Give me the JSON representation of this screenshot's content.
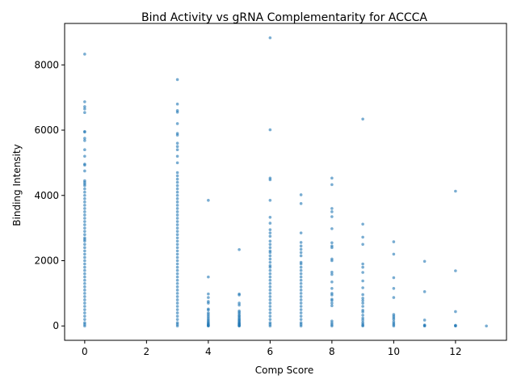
{
  "chart_data": {
    "type": "scatter",
    "title": "Bind Activity vs gRNA Complementarity for ACCCA",
    "xlabel": "Comp Score",
    "ylabel": "Binding Intensity",
    "xlim": [
      -0.65,
      13.65
    ],
    "ylim": [
      -440,
      9270
    ],
    "xticks": [
      0,
      2,
      4,
      6,
      8,
      10,
      12
    ],
    "yticks": [
      0,
      2000,
      4000,
      6000,
      8000
    ],
    "grid": false,
    "legend": "none",
    "marker_color": "#1f77b4",
    "marker_alpha": 0.6,
    "series": [
      {
        "x": 0,
        "y": [
          8330,
          6870,
          6720,
          6650,
          6540,
          5960,
          5940,
          5750,
          5680,
          5400,
          5200,
          4960,
          4930,
          4750,
          4450,
          4400,
          4350,
          4300,
          4200,
          4100,
          4000,
          3900,
          3800,
          3700,
          3600,
          3500,
          3400,
          3300,
          3200,
          3100,
          3000,
          2900,
          2800,
          2700,
          2650,
          2600,
          2500,
          2400,
          2300,
          2200,
          2100,
          2000,
          1900,
          1800,
          1700,
          1600,
          1500,
          1400,
          1300,
          1200,
          1100,
          1000,
          900,
          800,
          700,
          600,
          500,
          400,
          300,
          200,
          100,
          50,
          0
        ]
      },
      {
        "x": 3,
        "y": [
          7550,
          6800,
          6600,
          6550,
          6200,
          5900,
          5850,
          5600,
          5500,
          5400,
          5200,
          5000,
          4700,
          4600,
          4500,
          4400,
          4300,
          4200,
          4100,
          4000,
          3900,
          3800,
          3700,
          3600,
          3500,
          3400,
          3300,
          3200,
          3100,
          3000,
          2900,
          2800,
          2700,
          2600,
          2500,
          2400,
          2300,
          2200,
          2100,
          2000,
          1900,
          1800,
          1700,
          1600,
          1500,
          1400,
          1300,
          1200,
          1100,
          1000,
          900,
          800,
          700,
          600,
          500,
          400,
          300,
          200,
          100,
          50,
          0
        ]
      },
      {
        "x": 4,
        "y": [
          3850,
          1500,
          980,
          870,
          750,
          700,
          520,
          490,
          400,
          350,
          300,
          250,
          200,
          160,
          120,
          90,
          60,
          40,
          20,
          5,
          0
        ]
      },
      {
        "x": 5,
        "y": [
          2340,
          980,
          950,
          700,
          640,
          460,
          420,
          380,
          330,
          300,
          260,
          220,
          190,
          160,
          130,
          100,
          80,
          60,
          40,
          20,
          5,
          0
        ]
      },
      {
        "x": 6,
        "y": [
          8830,
          6010,
          4530,
          4480,
          3850,
          3330,
          3150,
          2950,
          2850,
          2750,
          2600,
          2500,
          2400,
          2300,
          2250,
          2150,
          2050,
          1950,
          1850,
          1800,
          1700,
          1600,
          1500,
          1400,
          1300,
          1200,
          1100,
          1000,
          900,
          800,
          700,
          600,
          500,
          400,
          300,
          200,
          100,
          50,
          0
        ]
      },
      {
        "x": 7,
        "y": [
          4020,
          3750,
          2850,
          2560,
          2450,
          2350,
          2250,
          2150,
          1950,
          1900,
          1800,
          1700,
          1600,
          1500,
          1400,
          1300,
          1200,
          1100,
          1000,
          900,
          800,
          700,
          600,
          500,
          400,
          300,
          200,
          100,
          50,
          0
        ]
      },
      {
        "x": 8,
        "y": [
          4530,
          4330,
          3600,
          3500,
          3350,
          2980,
          2550,
          2450,
          2400,
          2050,
          2000,
          1650,
          1580,
          1350,
          1150,
          1000,
          950,
          820,
          780,
          700,
          620,
          150,
          90,
          40,
          0
        ]
      },
      {
        "x": 9,
        "y": [
          6340,
          3120,
          2720,
          2500,
          1900,
          1800,
          1640,
          1380,
          1170,
          960,
          850,
          780,
          700,
          600,
          480,
          430,
          330,
          240,
          180,
          110,
          60,
          20,
          0
        ]
      },
      {
        "x": 10,
        "y": [
          2580,
          2200,
          1480,
          1150,
          870,
          350,
          300,
          250,
          200,
          130,
          80,
          40,
          0
        ]
      },
      {
        "x": 11,
        "y": [
          1980,
          1050,
          180,
          30,
          10,
          0
        ]
      },
      {
        "x": 12,
        "y": [
          4130,
          1690,
          440,
          20,
          5,
          0
        ]
      },
      {
        "x": 13,
        "y": [
          0
        ]
      }
    ]
  }
}
